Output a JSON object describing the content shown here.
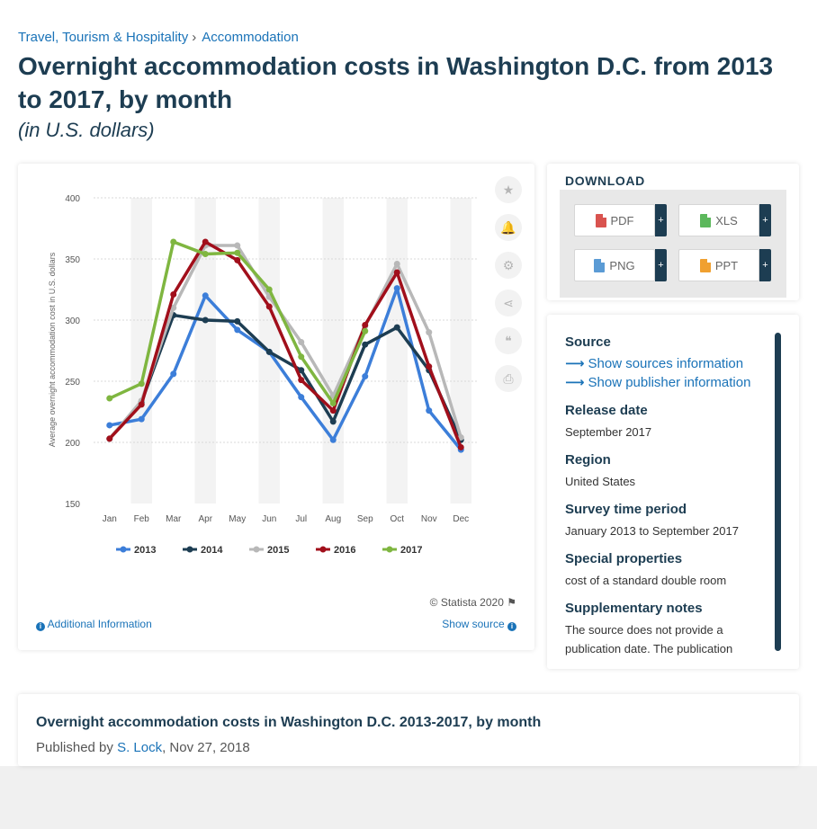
{
  "breadcrumb": {
    "parent": "Travel, Tourism & Hospitality",
    "separator": "›",
    "current": "Accommodation"
  },
  "page": {
    "title": "Overnight accommodation costs in Washington D.C. from 2013 to 2017, by month",
    "subtitle": "(in U.S. dollars)"
  },
  "chart_data": {
    "type": "line",
    "ylabel": "Average overnight accommodation cost in U.S. dollars",
    "xlabel": "",
    "ylim": [
      150,
      400
    ],
    "yticks": [
      150,
      200,
      250,
      300,
      350,
      400
    ],
    "grid": true,
    "legend_position": "bottom",
    "categories": [
      "Jan",
      "Feb",
      "Mar",
      "Apr",
      "May",
      "Jun",
      "Jul",
      "Aug",
      "Sep",
      "Oct",
      "Nov",
      "Dec"
    ],
    "series": [
      {
        "name": "2013",
        "color": "#3c7ed9",
        "values": [
          214,
          219,
          256,
          320,
          292,
          274,
          237,
          202,
          254,
          326,
          226,
          194
        ]
      },
      {
        "name": "2014",
        "color": "#1d3d52",
        "values": [
          203,
          233,
          304,
          300,
          299,
          274,
          259,
          217,
          280,
          294,
          259,
          202
        ]
      },
      {
        "name": "2015",
        "color": "#b8b8b8",
        "values": [
          203,
          234,
          310,
          361,
          361,
          319,
          282,
          238,
          295,
          346,
          290,
          204
        ]
      },
      {
        "name": "2016",
        "color": "#a10f1b",
        "values": [
          203,
          231,
          321,
          364,
          349,
          311,
          251,
          226,
          296,
          339,
          262,
          196
        ]
      },
      {
        "name": "2017",
        "color": "#7fb640",
        "values": [
          236,
          248,
          364,
          354,
          355,
          325,
          270,
          232,
          291,
          null,
          null,
          null
        ]
      }
    ]
  },
  "chart_meta": {
    "credit": "© Statista 2020",
    "additional_info": "Additional Information",
    "show_source": "Show source"
  },
  "toolbar": {
    "icons": [
      "star-icon",
      "bell-icon",
      "gear-icon",
      "share-icon",
      "quote-icon",
      "print-icon"
    ],
    "glyphs": [
      "★",
      "🔔",
      "⚙",
      "⋖",
      "❝",
      "⎙"
    ]
  },
  "download": {
    "title": "DOWNLOAD",
    "buttons": [
      {
        "label": "PDF",
        "color": "#d9534f"
      },
      {
        "label": "XLS",
        "color": "#5cb85c"
      },
      {
        "label": "PNG",
        "color": "#5b9bd5"
      },
      {
        "label": "PPT",
        "color": "#f0a030"
      }
    ],
    "plus": "+"
  },
  "meta": {
    "source_heading": "Source",
    "show_sources": "Show sources information",
    "show_publisher": "Show publisher information",
    "release_heading": "Release date",
    "release_value": "September 2017",
    "region_heading": "Region",
    "region_value": "United States",
    "survey_heading": "Survey time period",
    "survey_value": "January 2013 to September 2017",
    "special_heading": "Special properties",
    "special_value": "cost of a standard double room",
    "supp_heading": "Supplementary notes",
    "supp_value": "The source does not provide a publication date. The publication"
  },
  "footer": {
    "title": "Overnight accommodation costs in Washington D.C. 2013-2017, by month",
    "published_prefix": "Published by ",
    "author": "S. Lock",
    "date": ", Nov 27, 2018"
  }
}
